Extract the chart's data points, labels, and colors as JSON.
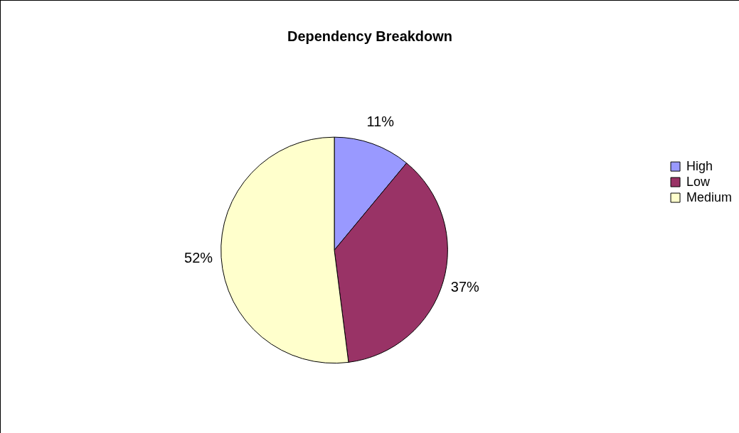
{
  "chart_data": {
    "type": "pie",
    "title": "Dependency Breakdown",
    "categories": [
      "High",
      "Low",
      "Medium"
    ],
    "values": [
      11,
      37,
      52
    ],
    "colors": [
      "#9999ff",
      "#993366",
      "#ffffcc"
    ],
    "value_labels": [
      "11%",
      "37%",
      "52%"
    ],
    "legend": "right"
  }
}
